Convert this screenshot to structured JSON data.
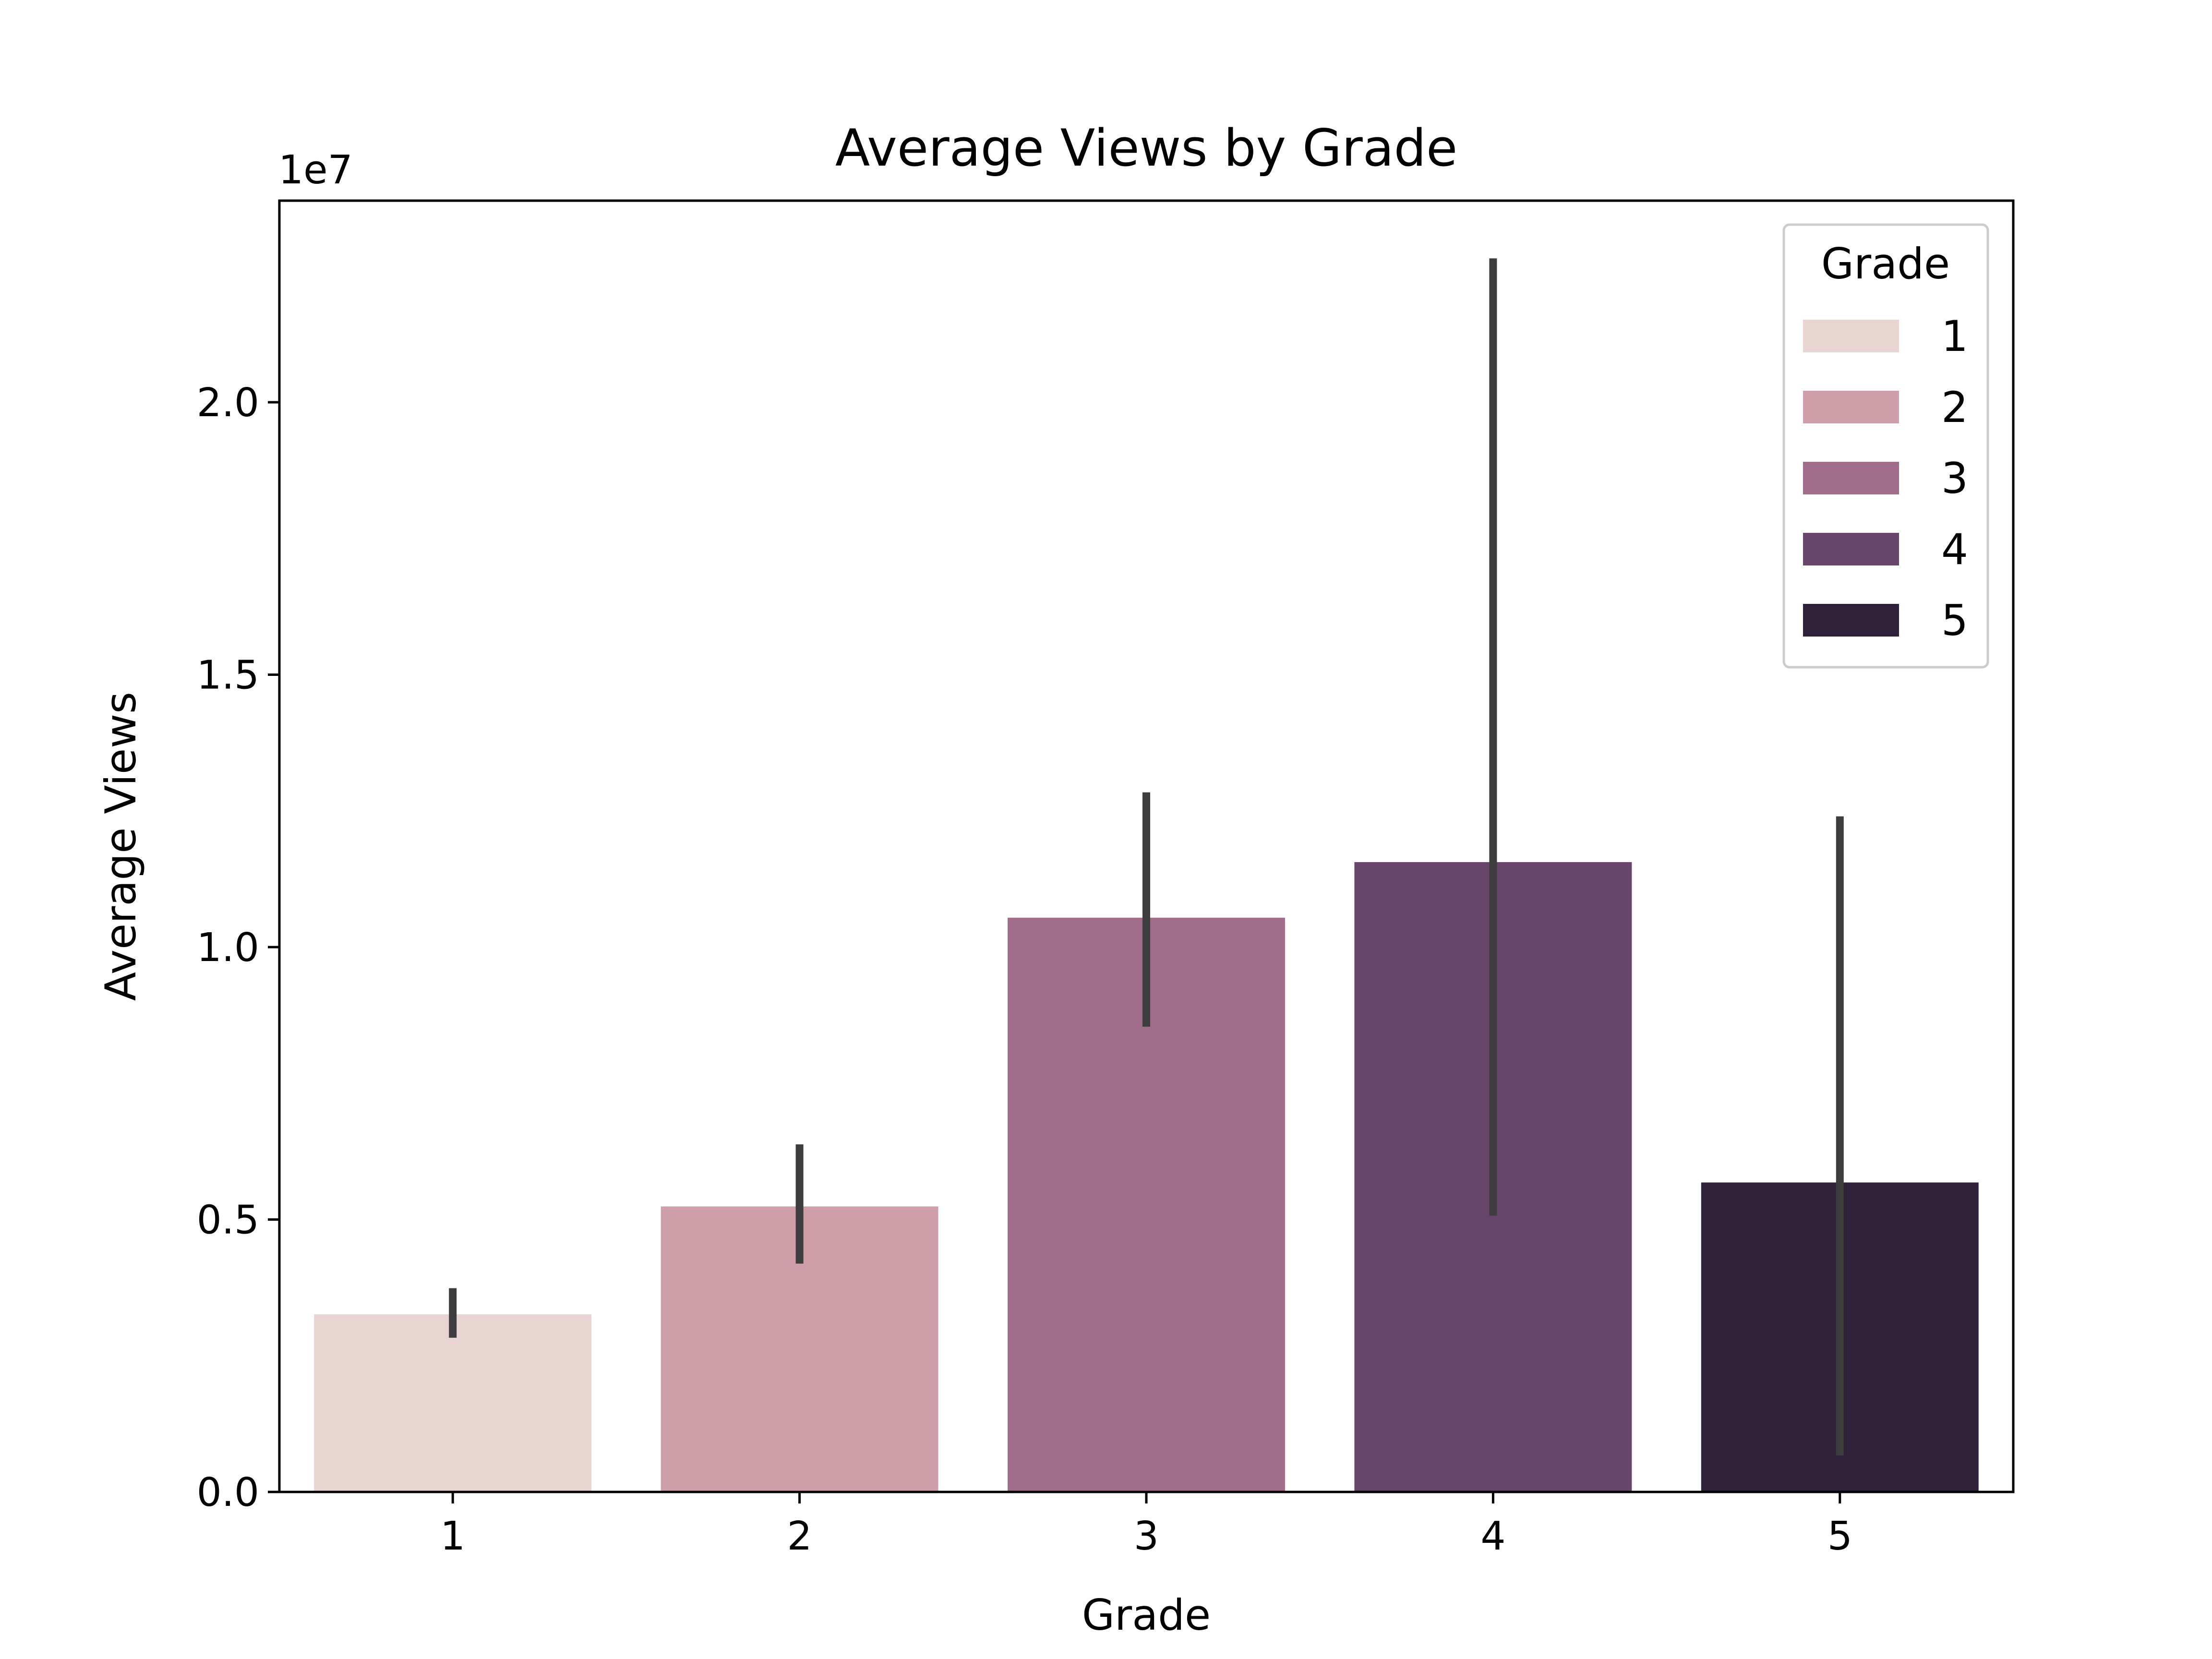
{
  "chart_data": {
    "type": "bar",
    "title": "Average Views by Grade",
    "xlabel": "Grade",
    "ylabel": "Average Views",
    "y_offset_label": "1e7",
    "y_scale_factor": 10000000,
    "categories": [
      "1",
      "2",
      "3",
      "4",
      "5"
    ],
    "values": [
      3260000,
      5240000,
      10540000,
      11560000,
      5680000
    ],
    "error_bars": [
      [
        2830000,
        3740000
      ],
      [
        4190000,
        6380000
      ],
      [
        8540000,
        12840000
      ],
      [
        5070000,
        22640000
      ],
      [
        670000,
        12400000
      ]
    ],
    "colors": [
      "#e8d4d0",
      "#cf9fa9",
      "#a06e8b",
      "#68456b",
      "#2f2139"
    ],
    "error_bar_color": "#3d3d3d",
    "ylim": [
      0,
      23700000
    ],
    "yticks": [
      0,
      5000000,
      10000000,
      15000000,
      20000000
    ],
    "ytick_labels": [
      "0.0",
      "0.5",
      "1.0",
      "1.5",
      "2.0"
    ],
    "legend": {
      "title": "Grade",
      "placement": "top-right",
      "entries": [
        "1",
        "2",
        "3",
        "4",
        "5"
      ]
    },
    "grid": false
  }
}
